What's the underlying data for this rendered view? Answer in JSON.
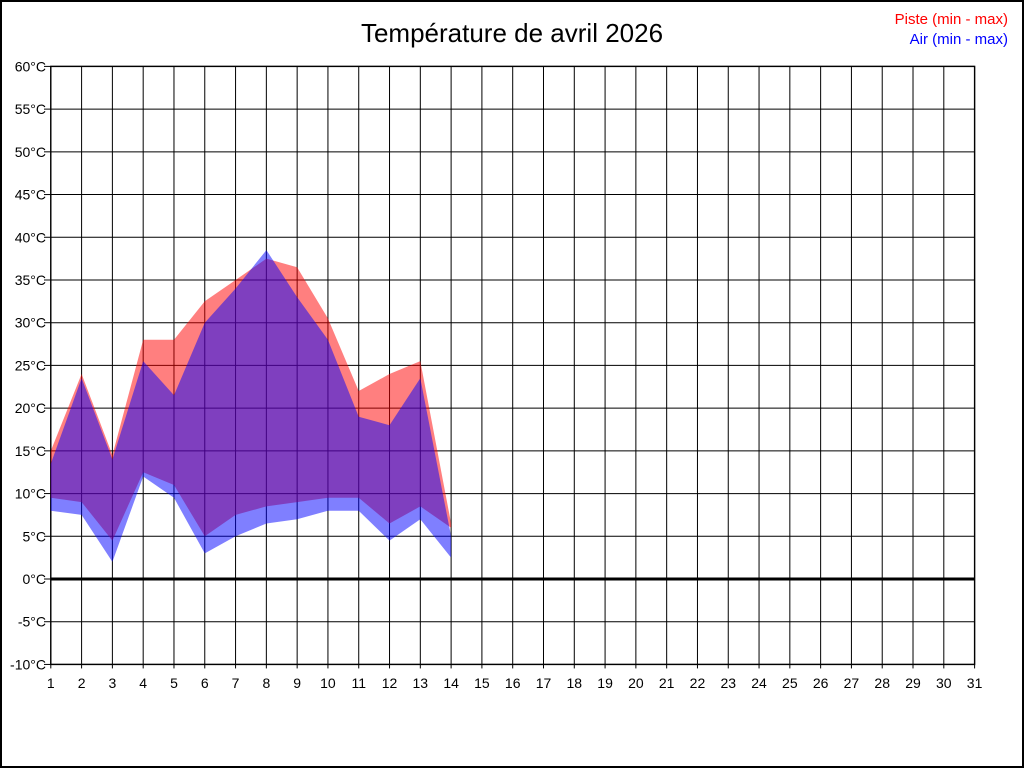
{
  "chart_data": {
    "type": "area",
    "title": "Température de avril 2026",
    "xlabel": "",
    "ylabel": "",
    "unit": "°C",
    "xlim": [
      1,
      31
    ],
    "ylim": [
      -10,
      60
    ],
    "grid": true,
    "zero_line_value": 0,
    "legend_position": "top-right",
    "x": [
      1,
      2,
      3,
      4,
      5,
      6,
      7,
      8,
      9,
      10,
      11,
      12,
      13,
      14
    ],
    "x_ticks": [
      {
        "v": 1,
        "label": "1"
      },
      {
        "v": 2,
        "label": "2"
      },
      {
        "v": 3,
        "label": "3"
      },
      {
        "v": 4,
        "label": "4"
      },
      {
        "v": 5,
        "label": "5"
      },
      {
        "v": 6,
        "label": "6"
      },
      {
        "v": 7,
        "label": "7"
      },
      {
        "v": 8,
        "label": "8"
      },
      {
        "v": 9,
        "label": "9"
      },
      {
        "v": 10,
        "label": "10"
      },
      {
        "v": 11,
        "label": "11"
      },
      {
        "v": 12,
        "label": "12"
      },
      {
        "v": 13,
        "label": "13"
      },
      {
        "v": 14,
        "label": "14"
      },
      {
        "v": 15,
        "label": "15"
      },
      {
        "v": 16,
        "label": "16"
      },
      {
        "v": 17,
        "label": "17"
      },
      {
        "v": 18,
        "label": "18"
      },
      {
        "v": 19,
        "label": "19"
      },
      {
        "v": 20,
        "label": "20"
      },
      {
        "v": 21,
        "label": "21"
      },
      {
        "v": 22,
        "label": "22"
      },
      {
        "v": 23,
        "label": "23"
      },
      {
        "v": 24,
        "label": "24"
      },
      {
        "v": 25,
        "label": "25"
      },
      {
        "v": 26,
        "label": "26"
      },
      {
        "v": 27,
        "label": "27"
      },
      {
        "v": 28,
        "label": "28"
      },
      {
        "v": 29,
        "label": "29"
      },
      {
        "v": 30,
        "label": "30"
      },
      {
        "v": 31,
        "label": "31"
      }
    ],
    "y_ticks": [
      {
        "v": 60,
        "label": "60°C"
      },
      {
        "v": 55,
        "label": "55°C"
      },
      {
        "v": 50,
        "label": "50°C"
      },
      {
        "v": 45,
        "label": "45°C"
      },
      {
        "v": 40,
        "label": "40°C"
      },
      {
        "v": 35,
        "label": "35°C"
      },
      {
        "v": 30,
        "label": "30°C"
      },
      {
        "v": 25,
        "label": "25°C"
      },
      {
        "v": 20,
        "label": "20°C"
      },
      {
        "v": 15,
        "label": "15°C"
      },
      {
        "v": 10,
        "label": "10°C"
      },
      {
        "v": 5,
        "label": "5°C"
      },
      {
        "v": 0,
        "label": "0°C"
      },
      {
        "v": -5,
        "label": "-5°C"
      },
      {
        "v": -10,
        "label": "-10°C"
      }
    ],
    "series": [
      {
        "name": "Piste (min - max)",
        "color": "#ff0000",
        "fill_opacity": 0.5,
        "max": [
          15,
          24,
          14.5,
          28,
          28,
          32.5,
          35,
          37.5,
          36.5,
          30.5,
          22,
          24,
          25.5,
          6.5
        ],
        "min": [
          9.5,
          9,
          4.5,
          12.5,
          11,
          5,
          7.5,
          8.5,
          9,
          9.5,
          9.5,
          6.5,
          8.5,
          6
        ]
      },
      {
        "name": "Air (min - max)",
        "color": "#0000ff",
        "fill_opacity": 0.5,
        "max": [
          13.5,
          23.5,
          14,
          25.5,
          21.5,
          30,
          34,
          38.5,
          33,
          28,
          19,
          18,
          23.5,
          5
        ],
        "min": [
          8,
          7.5,
          2,
          12,
          9.5,
          3,
          5,
          6.5,
          7,
          8,
          8,
          4.5,
          7,
          2.5
        ]
      }
    ]
  }
}
